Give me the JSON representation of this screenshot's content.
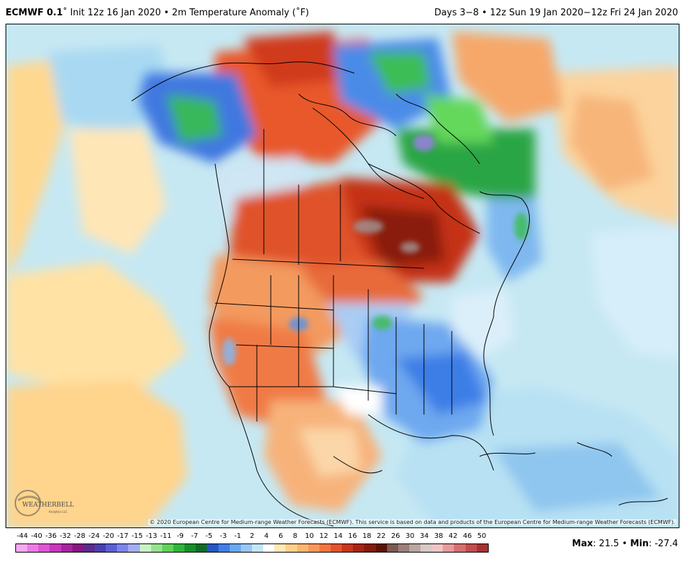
{
  "header": {
    "model": "ECMWF 0.1",
    "title_rest": "˚ Init 12z 16 Jan 2020 • 2m Temperature Anomaly (˚F)",
    "valid": "Days 3−8 • 12z Sun 19 Jan 2020−12z Fri 24 Jan 2020"
  },
  "map": {
    "region": "North America",
    "field": "2m Temperature Anomaly"
  },
  "logo": {
    "text": "WEATHERBELL",
    "sub": "Analytics LLC"
  },
  "copyright": "© 2020 European Centre for Medium-range Weather Forecasts (ECMWF). This service is based on data and products of the European Centre for Medium-range Weather Forecasts (ECMWF).",
  "colorbar": {
    "ticks": [
      "-44",
      "-40",
      "-36",
      "-32",
      "-28",
      "-24",
      "-20",
      "-17",
      "-15",
      "-13",
      "-11",
      "-9",
      "-7",
      "-5",
      "-3",
      "-1",
      "2",
      "4",
      "6",
      "8",
      "10",
      "12",
      "14",
      "16",
      "18",
      "22",
      "26",
      "30",
      "34",
      "38",
      "42",
      "46",
      "50"
    ],
    "colors": [
      "#f7a8f0",
      "#ee7ae4",
      "#e055d6",
      "#c935bf",
      "#a8239f",
      "#86187f",
      "#5e2a8e",
      "#4a3fb0",
      "#5a5fd8",
      "#7b86ea",
      "#a5aef3",
      "#c8f2c5",
      "#95e38d",
      "#5fd25a",
      "#2db63a",
      "#15902a",
      "#0b6f22",
      "#2356c4",
      "#3f7ee6",
      "#6aa8f2",
      "#98c7f6",
      "#c3e6f7",
      "#ffffff",
      "#ffe8b8",
      "#ffd08a",
      "#fdb56f",
      "#fb965a",
      "#f4743f",
      "#e3522b",
      "#c93519",
      "#a82410",
      "#861a0b",
      "#5e1206",
      "#7a5a52",
      "#9a7f79",
      "#b9a6a1",
      "#d7c9c6",
      "#eec5c5",
      "#e79a9a",
      "#d76f6f",
      "#c44c4c",
      "#a83030"
    ]
  },
  "stats": {
    "max_label": "Max",
    "max": "21.5",
    "min_label": "Min",
    "min": "-27.4"
  }
}
